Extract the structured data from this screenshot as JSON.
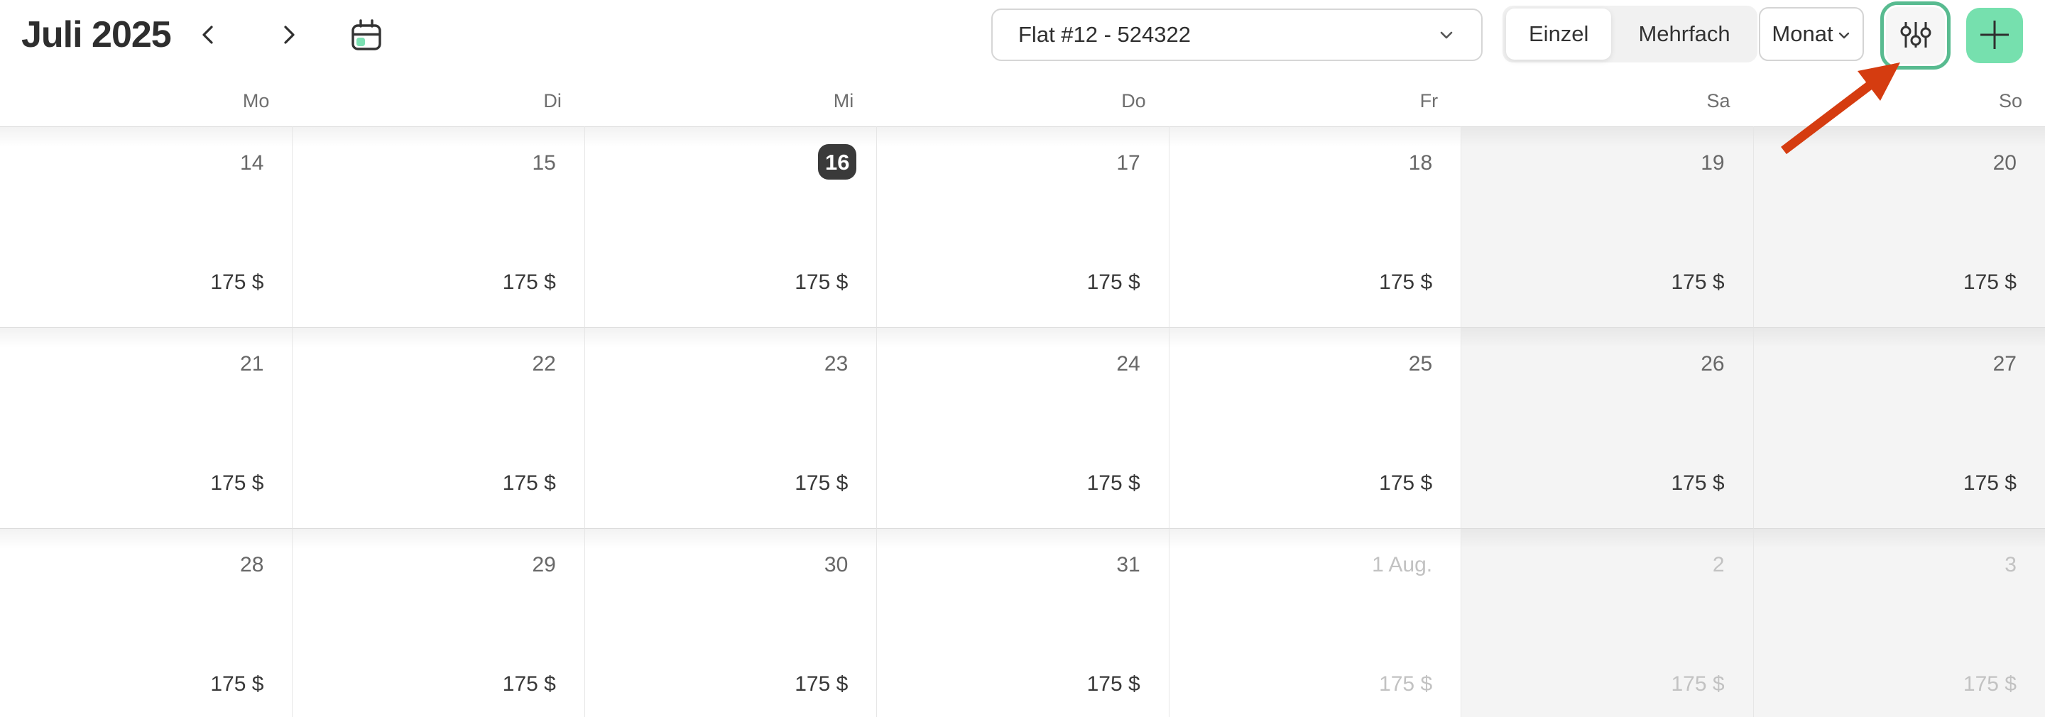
{
  "header": {
    "title": "Juli 2025",
    "unit_select": {
      "value": "Flat #12 - 524322"
    },
    "mode_toggle": {
      "single_label": "Einzel",
      "multi_label": "Mehrfach",
      "active": "Einzel"
    },
    "view_select": {
      "value": "Monat"
    }
  },
  "calendar": {
    "day_headers": [
      "Mo",
      "Di",
      "Mi",
      "Do",
      "Fr",
      "Sa",
      "So"
    ],
    "weeks": [
      [
        {
          "day": "14",
          "price": "175 $"
        },
        {
          "day": "15",
          "price": "175 $"
        },
        {
          "day": "16",
          "price": "175 $",
          "today": true
        },
        {
          "day": "17",
          "price": "175 $"
        },
        {
          "day": "18",
          "price": "175 $"
        },
        {
          "day": "19",
          "price": "175 $"
        },
        {
          "day": "20",
          "price": "175 $"
        }
      ],
      [
        {
          "day": "21",
          "price": "175 $"
        },
        {
          "day": "22",
          "price": "175 $"
        },
        {
          "day": "23",
          "price": "175 $"
        },
        {
          "day": "24",
          "price": "175 $"
        },
        {
          "day": "25",
          "price": "175 $"
        },
        {
          "day": "26",
          "price": "175 $"
        },
        {
          "day": "27",
          "price": "175 $"
        }
      ],
      [
        {
          "day": "28",
          "price": "175 $"
        },
        {
          "day": "29",
          "price": "175 $"
        },
        {
          "day": "30",
          "price": "175 $"
        },
        {
          "day": "31",
          "price": "175 $"
        },
        {
          "day": "1 Aug.",
          "price": "175 $",
          "muted": true
        },
        {
          "day": "2",
          "price": "175 $",
          "muted": true
        },
        {
          "day": "3",
          "price": "175 $",
          "muted": true
        }
      ]
    ]
  },
  "colors": {
    "ring_teal": "#58bb90",
    "mint": "#76e0ae",
    "calendar_icon_accent": "#7ce0b3",
    "today_badge": "#3a3a3a",
    "weekend_bg": "#f4f4f4",
    "arrow_red": "#d53c10"
  }
}
